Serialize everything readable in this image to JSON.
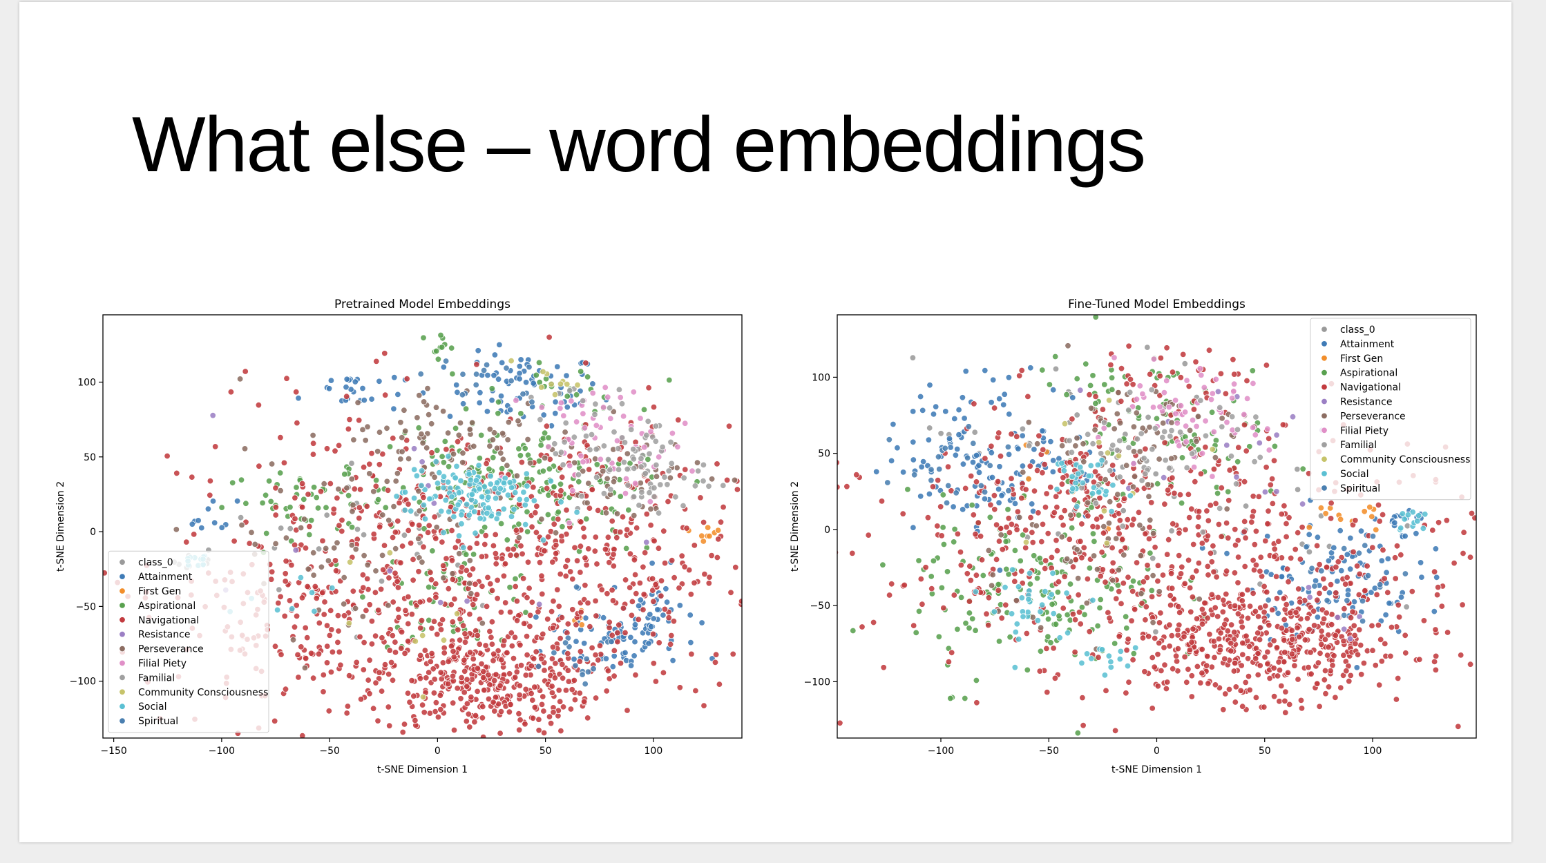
{
  "slide": {
    "title": "What else – word embeddings"
  },
  "colors": {
    "class_0": "#9a9a9a",
    "Attainment": "#3f7bb6",
    "First Gen": "#f28e2b",
    "Aspirational": "#59a14f",
    "Navigational": "#c23b3f",
    "Resistance": "#9b7fc4",
    "Perseverance": "#8c6d62",
    "Filial Piety": "#e08fc7",
    "Familial": "#a0a0a0",
    "Community Consciousness": "#c6c36a",
    "Social": "#5bc0d3",
    "Spiritual": "#4a7fb0"
  },
  "chart_data": [
    {
      "type": "scatter",
      "title": "Pretrained Model Embeddings",
      "xlabel": "t-SNE Dimension 1",
      "ylabel": "t-SNE Dimension 2",
      "xlim": [
        -155,
        141
      ],
      "ylim": [
        -138,
        145
      ],
      "xticks": [
        -150,
        -100,
        -50,
        0,
        50,
        100
      ],
      "yticks": [
        -100,
        -50,
        0,
        50,
        100
      ],
      "legend": "lower-left",
      "grid": false,
      "series": [
        {
          "name": "class_0",
          "clusters": [
            [
              -25,
              -5,
              40,
              25,
              30
            ],
            [
              -110,
              -20,
              6,
              5,
              8
            ]
          ]
        },
        {
          "name": "Attainment",
          "clusters": [
            [
              40,
              95,
              18,
              12,
              70
            ],
            [
              80,
              -70,
              15,
              12,
              60
            ],
            [
              100,
              -55,
              10,
              15,
              40
            ],
            [
              -40,
              95,
              12,
              8,
              25
            ],
            [
              -105,
              10,
              6,
              6,
              10
            ]
          ]
        },
        {
          "name": "First Gen",
          "clusters": [
            [
              125,
              0,
              3,
              3,
              8
            ],
            [
              68,
              -58,
              3,
              3,
              4
            ]
          ]
        },
        {
          "name": "Aspirational",
          "clusters": [
            [
              -60,
              20,
              20,
              10,
              45
            ],
            [
              20,
              40,
              30,
              20,
              90
            ],
            [
              60,
              20,
              25,
              20,
              70
            ],
            [
              10,
              -40,
              20,
              18,
              50
            ],
            [
              0,
              125,
              5,
              4,
              10
            ],
            [
              60,
              95,
              15,
              8,
              20
            ]
          ]
        },
        {
          "name": "Navigational",
          "clusters": [
            [
              20,
              -100,
              25,
              18,
              320
            ],
            [
              0,
              -30,
              60,
              55,
              560
            ],
            [
              65,
              -20,
              35,
              45,
              250
            ],
            [
              -70,
              -60,
              25,
              30,
              90
            ]
          ]
        },
        {
          "name": "Resistance",
          "clusters": [
            [
              10,
              -20,
              60,
              50,
              12
            ]
          ]
        },
        {
          "name": "Perseverance",
          "clusters": [
            [
              10,
              60,
              30,
              20,
              90
            ],
            [
              -40,
              -10,
              35,
              30,
              60
            ],
            [
              85,
              35,
              20,
              15,
              40
            ]
          ]
        },
        {
          "name": "Filial Piety",
          "clusters": [
            [
              80,
              60,
              18,
              18,
              50
            ],
            [
              65,
              80,
              8,
              6,
              8
            ]
          ]
        },
        {
          "name": "Familial",
          "clusters": [
            [
              95,
              40,
              15,
              15,
              60
            ],
            [
              70,
              70,
              15,
              15,
              30
            ]
          ]
        },
        {
          "name": "Community Consciousness",
          "clusters": [
            [
              50,
              100,
              8,
              4,
              10
            ],
            [
              -10,
              -60,
              20,
              20,
              8
            ]
          ]
        },
        {
          "name": "Social",
          "clusters": [
            [
              15,
              25,
              15,
              12,
              130
            ],
            [
              -112,
              -20,
              5,
              3,
              12
            ],
            [
              -70,
              -50,
              15,
              10,
              8
            ]
          ]
        },
        {
          "name": "Spiritual",
          "clusters": [
            [
              60,
              -80,
              12,
              12,
              15
            ],
            [
              20,
              100,
              15,
              8,
              15
            ]
          ]
        }
      ]
    },
    {
      "type": "scatter",
      "title": "Fine-Tuned Model Embeddings",
      "xlabel": "t-SNE Dimension 1",
      "ylabel": "t-SNE Dimension 2",
      "xlim": [
        -148,
        148
      ],
      "ylim": [
        -137,
        141
      ],
      "xticks": [
        -100,
        -50,
        0,
        50,
        100
      ],
      "yticks": [
        -100,
        -50,
        0,
        50,
        100
      ],
      "legend": "upper-right",
      "grid": false,
      "series": [
        {
          "name": "class_0",
          "clusters": [
            [
              -30,
              60,
              40,
              25,
              30
            ],
            [
              20,
              0,
              40,
              30,
              20
            ]
          ]
        },
        {
          "name": "Attainment",
          "clusters": [
            [
              -75,
              50,
              25,
              25,
              130
            ],
            [
              80,
              -30,
              20,
              20,
              100
            ],
            [
              115,
              5,
              5,
              5,
              15
            ]
          ]
        },
        {
          "name": "First Gen",
          "clusters": [
            [
              85,
              10,
              10,
              8,
              12
            ],
            [
              -55,
              20,
              30,
              30,
              6
            ]
          ]
        },
        {
          "name": "Aspirational",
          "clusters": [
            [
              -55,
              -40,
              30,
              30,
              160
            ],
            [
              20,
              50,
              30,
              20,
              60
            ],
            [
              -20,
              90,
              20,
              15,
              30
            ]
          ]
        },
        {
          "name": "Navigational",
          "clusters": [
            [
              50,
              -75,
              35,
              18,
              420
            ],
            [
              10,
              -20,
              70,
              40,
              520
            ],
            [
              -30,
              30,
              40,
              30,
              120
            ],
            [
              10,
              100,
              30,
              15,
              40
            ]
          ]
        },
        {
          "name": "Resistance",
          "clusters": [
            [
              20,
              60,
              30,
              20,
              15
            ],
            [
              80,
              -50,
              10,
              10,
              6
            ]
          ]
        },
        {
          "name": "Perseverance",
          "clusters": [
            [
              -10,
              60,
              25,
              20,
              70
            ],
            [
              -40,
              -20,
              30,
              25,
              50
            ]
          ]
        },
        {
          "name": "Filial Piety",
          "clusters": [
            [
              10,
              70,
              20,
              15,
              50
            ],
            [
              30,
              90,
              10,
              6,
              10
            ]
          ]
        },
        {
          "name": "Familial",
          "clusters": [
            [
              -5,
              50,
              25,
              20,
              60
            ]
          ]
        },
        {
          "name": "Community Consciousness",
          "clusters": [
            [
              -20,
              40,
              25,
              20,
              10
            ]
          ]
        },
        {
          "name": "Social",
          "clusters": [
            [
              -35,
              35,
              6,
              6,
              25
            ],
            [
              -55,
              -50,
              12,
              12,
              30
            ],
            [
              -30,
              -80,
              15,
              6,
              15
            ],
            [
              118,
              5,
              5,
              5,
              12
            ],
            [
              -20,
              20,
              10,
              8,
              10
            ]
          ]
        },
        {
          "name": "Spiritual",
          "clusters": [
            [
              -90,
              40,
              20,
              20,
              20
            ],
            [
              90,
              -30,
              15,
              15,
              20
            ]
          ]
        }
      ]
    }
  ]
}
